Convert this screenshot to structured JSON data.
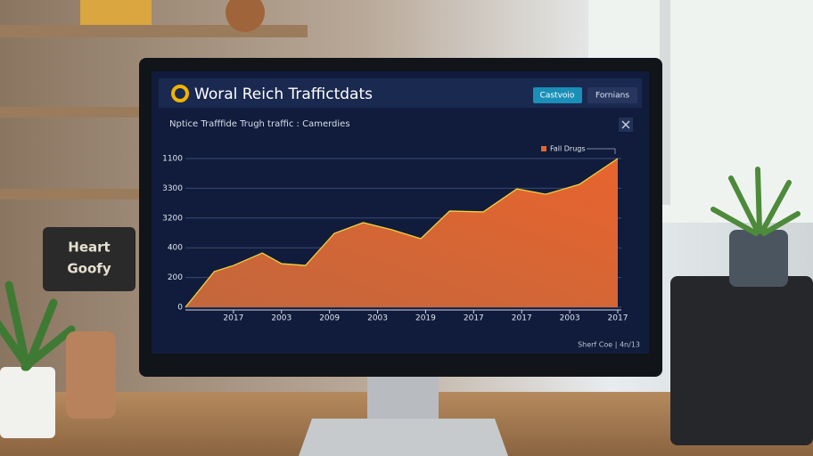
{
  "window": {
    "title": "Woral Reich Traffictdats",
    "buttons": [
      "Castvoio",
      "Fornians"
    ]
  },
  "chart_data": {
    "type": "area",
    "subtitle": "Nptice Trafffide Trugh traffic : Camerdies",
    "x": [
      0,
      0.6,
      1.0,
      1.6,
      2.0,
      2.5,
      3.1,
      3.7,
      4.3,
      4.9,
      5.5,
      6.2,
      6.9,
      7.5,
      8.2,
      9.0
    ],
    "series": [
      {
        "name": "Fall Drugs",
        "color": "#e8642e",
        "values": [
          0,
          240,
          281,
          365,
          293,
          281,
          497,
          569,
          521,
          461,
          647,
          641,
          796,
          760,
          826,
          1000
        ]
      }
    ],
    "xlim": [
      0,
      9
    ],
    "xticks": [
      {
        "value": 1,
        "label": "2017"
      },
      {
        "value": 2,
        "label": "2003"
      },
      {
        "value": 3,
        "label": "2009"
      },
      {
        "value": 4,
        "label": "2003"
      },
      {
        "value": 5,
        "label": "2019"
      },
      {
        "value": 6,
        "label": "2017"
      },
      {
        "value": 7,
        "label": "2017"
      },
      {
        "value": 8,
        "label": "2003"
      },
      {
        "value": 9,
        "label": "2017"
      }
    ],
    "ylim": [
      0,
      1000
    ],
    "yticks": [
      0,
      200,
      400,
      {
        "value": 600,
        "label": "3200"
      },
      {
        "value": 800,
        "label": "3300"
      },
      {
        "value": 1000,
        "label": "1100"
      }
    ],
    "grid": true,
    "legend": "top-right"
  },
  "footer": "Sherf Coe | 4n/13",
  "decor_sign": [
    "Heart",
    "Goofy"
  ]
}
